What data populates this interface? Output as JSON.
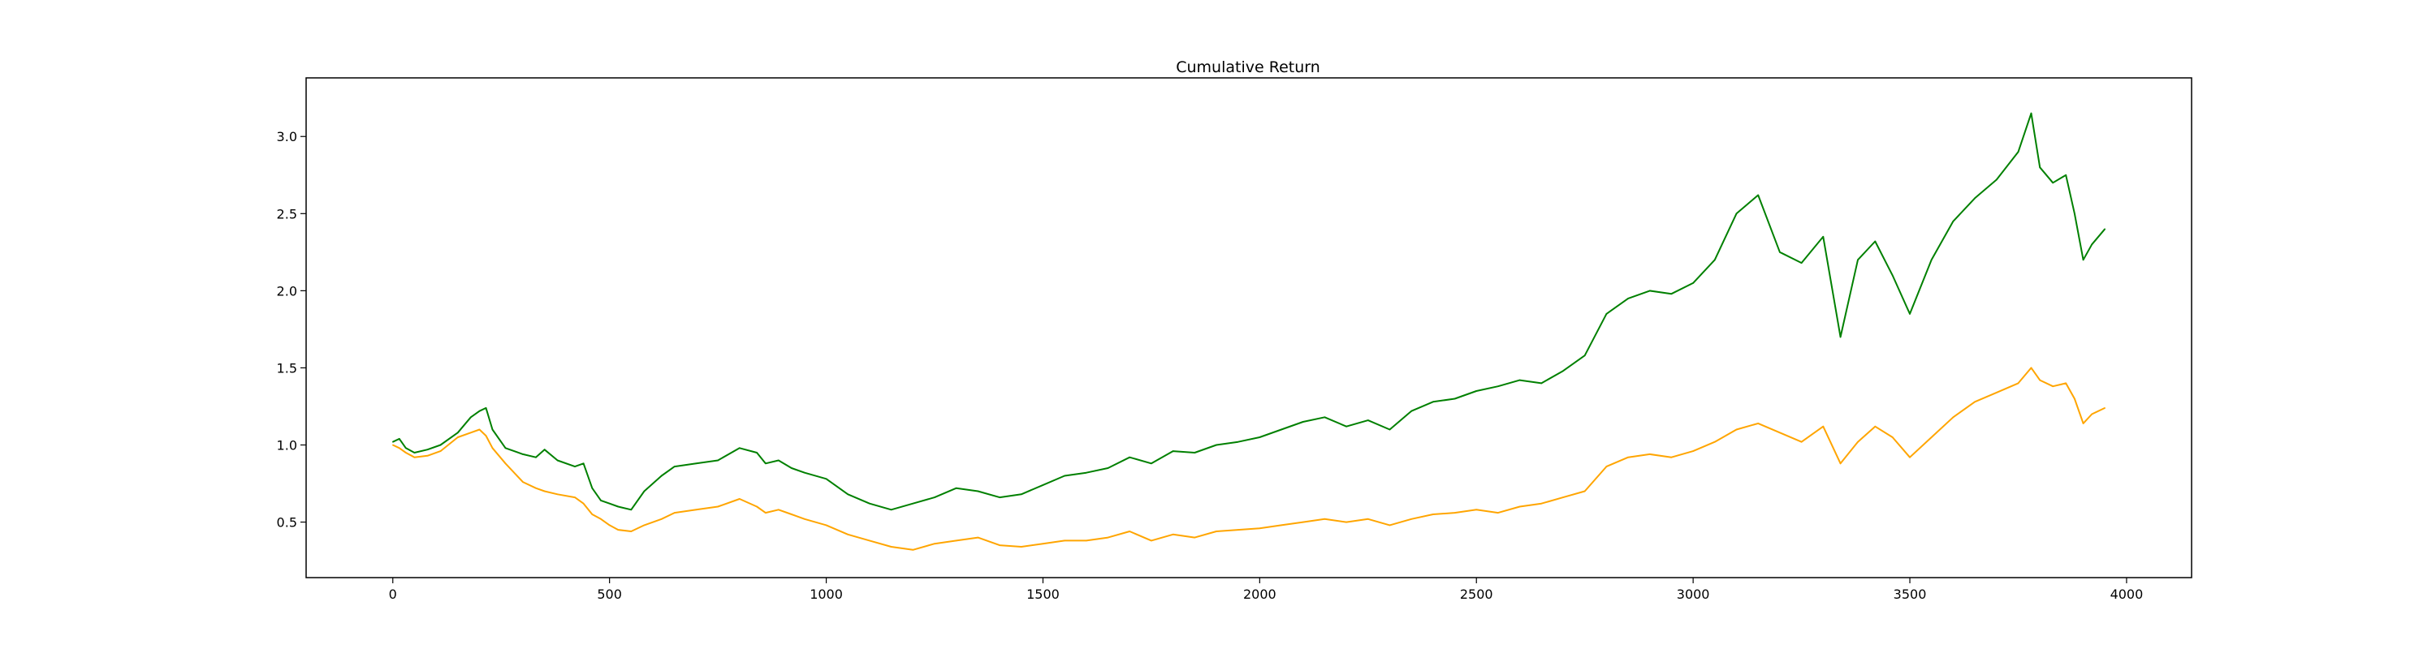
{
  "chart_data": {
    "type": "line",
    "title": "Cumulative Return",
    "xlabel": "",
    "ylabel": "",
    "xlim": [
      -200,
      4150
    ],
    "ylim": [
      0.14,
      3.38
    ],
    "grid": false,
    "x_ticks": [
      {
        "value": 0,
        "label": "0"
      },
      {
        "value": 500,
        "label": "500"
      },
      {
        "value": 1000,
        "label": "1000"
      },
      {
        "value": 1500,
        "label": "1500"
      },
      {
        "value": 2000,
        "label": "2000"
      },
      {
        "value": 2500,
        "label": "2500"
      },
      {
        "value": 3000,
        "label": "3000"
      },
      {
        "value": 3500,
        "label": "3500"
      },
      {
        "value": 4000,
        "label": "4000"
      }
    ],
    "y_ticks": [
      {
        "value": 0.5,
        "label": "0.5"
      },
      {
        "value": 1.0,
        "label": "1.0"
      },
      {
        "value": 1.5,
        "label": "1.5"
      },
      {
        "value": 2.0,
        "label": "2.0"
      },
      {
        "value": 2.5,
        "label": "2.5"
      },
      {
        "value": 3.0,
        "label": "3.0"
      }
    ],
    "series": [
      {
        "color": "#008000",
        "x": [
          0,
          15,
          30,
          50,
          80,
          110,
          150,
          180,
          200,
          215,
          230,
          260,
          300,
          330,
          350,
          380,
          420,
          440,
          460,
          480,
          500,
          520,
          550,
          580,
          620,
          650,
          700,
          750,
          800,
          840,
          860,
          890,
          920,
          950,
          1000,
          1050,
          1100,
          1150,
          1200,
          1250,
          1300,
          1350,
          1400,
          1450,
          1500,
          1550,
          1600,
          1650,
          1700,
          1750,
          1800,
          1850,
          1900,
          1950,
          2000,
          2050,
          2100,
          2150,
          2200,
          2250,
          2300,
          2350,
          2400,
          2450,
          2500,
          2550,
          2600,
          2650,
          2700,
          2750,
          2800,
          2850,
          2900,
          2950,
          3000,
          3050,
          3100,
          3150,
          3200,
          3250,
          3300,
          3340,
          3380,
          3420,
          3460,
          3500,
          3550,
          3600,
          3650,
          3700,
          3750,
          3780,
          3800,
          3830,
          3860,
          3880,
          3900,
          3920,
          3950
        ],
        "values": [
          1.02,
          1.04,
          0.98,
          0.95,
          0.97,
          1.0,
          1.08,
          1.18,
          1.22,
          1.24,
          1.1,
          0.98,
          0.94,
          0.92,
          0.97,
          0.9,
          0.86,
          0.88,
          0.72,
          0.64,
          0.62,
          0.6,
          0.58,
          0.7,
          0.8,
          0.86,
          0.88,
          0.9,
          0.98,
          0.95,
          0.88,
          0.9,
          0.85,
          0.82,
          0.78,
          0.68,
          0.62,
          0.58,
          0.62,
          0.66,
          0.72,
          0.7,
          0.66,
          0.68,
          0.74,
          0.8,
          0.82,
          0.85,
          0.92,
          0.88,
          0.96,
          0.95,
          1.0,
          1.02,
          1.05,
          1.1,
          1.15,
          1.18,
          1.12,
          1.16,
          1.1,
          1.22,
          1.28,
          1.3,
          1.35,
          1.38,
          1.42,
          1.4,
          1.48,
          1.58,
          1.85,
          1.95,
          2.0,
          1.98,
          2.05,
          2.2,
          2.5,
          2.62,
          2.25,
          2.18,
          2.35,
          1.7,
          2.2,
          2.32,
          2.1,
          1.85,
          2.2,
          2.45,
          2.6,
          2.72,
          2.9,
          3.15,
          2.8,
          2.7,
          2.75,
          2.5,
          2.2,
          2.3,
          2.4
        ]
      },
      {
        "color": "#FFA500",
        "x": [
          0,
          15,
          30,
          50,
          80,
          110,
          150,
          180,
          200,
          215,
          230,
          260,
          300,
          330,
          350,
          380,
          420,
          440,
          460,
          480,
          500,
          520,
          550,
          580,
          620,
          650,
          700,
          750,
          800,
          840,
          860,
          890,
          920,
          950,
          1000,
          1050,
          1100,
          1150,
          1200,
          1250,
          1300,
          1350,
          1400,
          1450,
          1500,
          1550,
          1600,
          1650,
          1700,
          1750,
          1800,
          1850,
          1900,
          1950,
          2000,
          2050,
          2100,
          2150,
          2200,
          2250,
          2300,
          2350,
          2400,
          2450,
          2500,
          2550,
          2600,
          2650,
          2700,
          2750,
          2800,
          2850,
          2900,
          2950,
          3000,
          3050,
          3100,
          3150,
          3200,
          3250,
          3300,
          3340,
          3380,
          3420,
          3460,
          3500,
          3550,
          3600,
          3650,
          3700,
          3750,
          3780,
          3800,
          3830,
          3860,
          3880,
          3900,
          3920,
          3950
        ],
        "values": [
          1.0,
          0.98,
          0.95,
          0.92,
          0.93,
          0.96,
          1.05,
          1.08,
          1.1,
          1.06,
          0.98,
          0.88,
          0.76,
          0.72,
          0.7,
          0.68,
          0.66,
          0.62,
          0.55,
          0.52,
          0.48,
          0.45,
          0.44,
          0.48,
          0.52,
          0.56,
          0.58,
          0.6,
          0.65,
          0.6,
          0.56,
          0.58,
          0.55,
          0.52,
          0.48,
          0.42,
          0.38,
          0.34,
          0.32,
          0.36,
          0.38,
          0.4,
          0.35,
          0.34,
          0.36,
          0.38,
          0.38,
          0.4,
          0.44,
          0.38,
          0.42,
          0.4,
          0.44,
          0.45,
          0.46,
          0.48,
          0.5,
          0.52,
          0.5,
          0.52,
          0.48,
          0.52,
          0.55,
          0.56,
          0.58,
          0.56,
          0.6,
          0.62,
          0.66,
          0.7,
          0.86,
          0.92,
          0.94,
          0.92,
          0.96,
          1.02,
          1.1,
          1.14,
          1.08,
          1.02,
          1.12,
          0.88,
          1.02,
          1.12,
          1.05,
          0.92,
          1.05,
          1.18,
          1.28,
          1.34,
          1.4,
          1.5,
          1.42,
          1.38,
          1.4,
          1.3,
          1.14,
          1.2,
          1.24
        ]
      }
    ]
  }
}
